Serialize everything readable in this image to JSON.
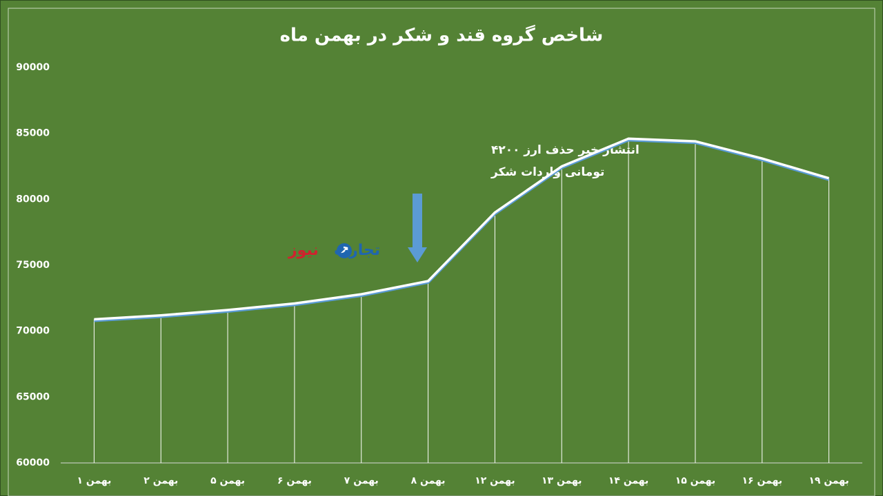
{
  "chart_data": {
    "type": "line",
    "title": "شاخص گروه قند و شکر در بهمن ماه",
    "categories": [
      "۱ بهمن",
      "۲ بهمن",
      "۵ بهمن",
      "۶ بهمن",
      "۷ بهمن",
      "۸ بهمن",
      "۱۲ بهمن",
      "۱۳ بهمن",
      "۱۴ بهمن",
      "۱۵ بهمن",
      "۱۶ بهمن",
      "۱۹ بهمن"
    ],
    "series": [
      {
        "name": "شاخص",
        "color": "#ffffff",
        "values": [
          70900,
          71200,
          71600,
          72100,
          72800,
          73800,
          79000,
          82500,
          84600,
          84400,
          83100,
          81600
        ]
      }
    ],
    "ylim": [
      60000,
      90000
    ],
    "yticks": [
      60000,
      65000,
      70000,
      75000,
      80000,
      85000,
      90000
    ],
    "annotations": [
      "انتشار خبر حذف ارز ۴۲۰۰",
      "تومانی واردات شکر"
    ],
    "watermark": {
      "part1": "تجارت",
      "part2": "نیوز"
    },
    "background": "#548235"
  }
}
